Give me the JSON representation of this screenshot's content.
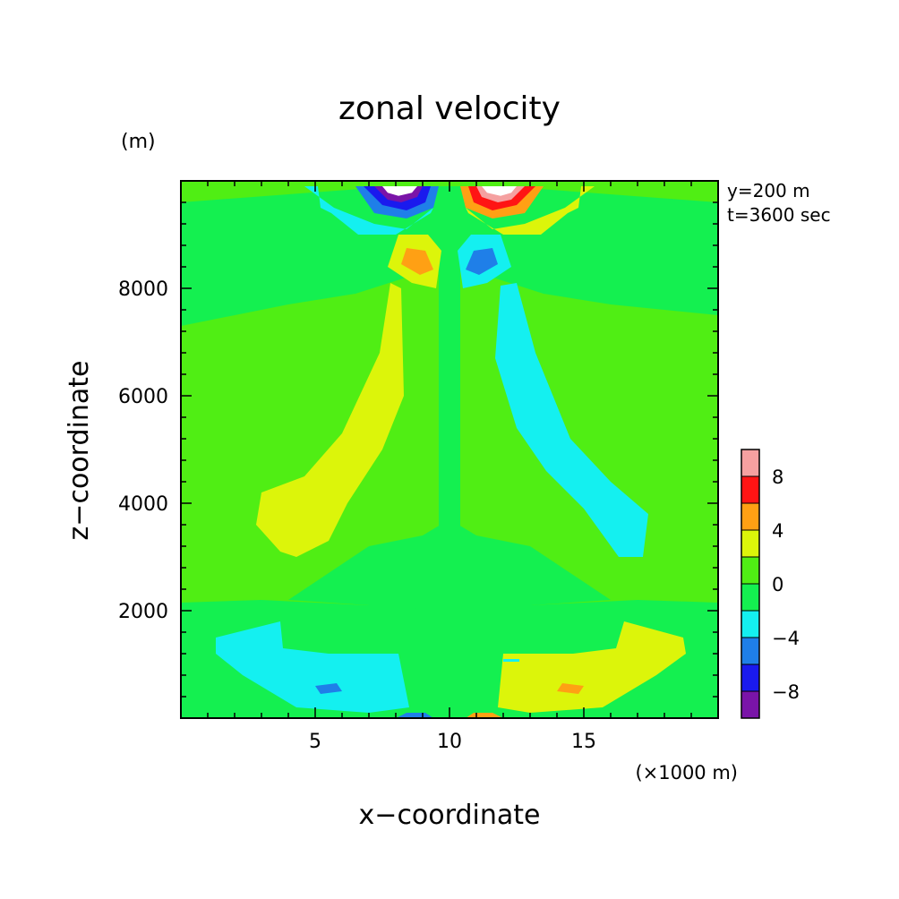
{
  "chart_data": {
    "type": "heatmap",
    "title": "zonal velocity",
    "xlabel": "x−coordinate",
    "ylabel": "z−coordinate",
    "x_unit": "(×1000 m)",
    "y_unit": "(m)",
    "annotations": [
      "y=200 m",
      "t=3600 sec"
    ],
    "xlim": [
      0,
      20
    ],
    "ylim": [
      0,
      10000
    ],
    "x_ticks": [
      {
        "value": 5,
        "label": "5"
      },
      {
        "value": 10,
        "label": "10"
      },
      {
        "value": 15,
        "label": "15"
      }
    ],
    "y_ticks": [
      {
        "value": 2000,
        "label": "2000"
      },
      {
        "value": 4000,
        "label": "4000"
      },
      {
        "value": 6000,
        "label": "6000"
      },
      {
        "value": 8000,
        "label": "8000"
      }
    ],
    "colorbar": {
      "levels": [
        -10,
        -8,
        -6,
        -4,
        -2,
        0,
        2,
        4,
        6,
        8,
        10
      ],
      "colors": [
        "#7a14a8",
        "#1a1aee",
        "#1f7fe8",
        "#14f0f0",
        "#14f050",
        "#50ee14",
        "#dcf50a",
        "#ffa014",
        "#ff1414",
        "#f5a0a0"
      ],
      "tick_labels": [
        {
          "value": -8,
          "label": "−8"
        },
        {
          "value": -4,
          "label": "−4"
        },
        {
          "value": 0,
          "label": "0"
        },
        {
          "value": 4,
          "label": "4"
        },
        {
          "value": 8,
          "label": "8"
        }
      ]
    },
    "background_value": 1,
    "features": [
      {
        "name": "low-band",
        "value": -1,
        "polygon": [
          [
            0,
            0
          ],
          [
            20,
            0
          ],
          [
            20,
            2150
          ],
          [
            17,
            2200
          ],
          [
            13,
            2100
          ],
          [
            10,
            2200
          ],
          [
            7,
            2100
          ],
          [
            3,
            2200
          ],
          [
            0,
            2150
          ]
        ]
      },
      {
        "name": "upper-band",
        "value": -1,
        "polygon": [
          [
            0,
            7300
          ],
          [
            4,
            7700
          ],
          [
            6.5,
            7900
          ],
          [
            9,
            8300
          ],
          [
            10,
            8300
          ],
          [
            11,
            8300
          ],
          [
            13.5,
            7900
          ],
          [
            16,
            7700
          ],
          [
            20,
            7500
          ],
          [
            20,
            9600
          ],
          [
            12,
            9900
          ],
          [
            8,
            9900
          ],
          [
            0,
            9600
          ]
        ]
      },
      {
        "name": "lower-center",
        "value": -1,
        "polygon": [
          [
            4,
            2200
          ],
          [
            7,
            3200
          ],
          [
            9,
            3400
          ],
          [
            10,
            3700
          ],
          [
            11,
            3400
          ],
          [
            13,
            3200
          ],
          [
            16,
            2200
          ],
          [
            10,
            2000
          ]
        ]
      },
      {
        "name": "center-column",
        "value": -1,
        "polygon": [
          [
            9.6,
            2000
          ],
          [
            10.4,
            2000
          ],
          [
            10.4,
            9600
          ],
          [
            9.6,
            9600
          ]
        ]
      },
      {
        "name": "left-positive-plume",
        "value": 3,
        "polygon": [
          [
            3.7,
            3100
          ],
          [
            4.3,
            3000
          ],
          [
            5.5,
            3300
          ],
          [
            6.2,
            4000
          ],
          [
            7.5,
            5000
          ],
          [
            8.3,
            6000
          ],
          [
            8.2,
            8000
          ],
          [
            7.8,
            8100
          ],
          [
            7.4,
            6800
          ],
          [
            6,
            5300
          ],
          [
            4.6,
            4500
          ],
          [
            3,
            4200
          ],
          [
            2.8,
            3600
          ]
        ]
      },
      {
        "name": "right-negative-plume",
        "value": -3,
        "polygon": [
          [
            16.3,
            3000
          ],
          [
            17.2,
            3000
          ],
          [
            17.4,
            3800
          ],
          [
            16,
            4400
          ],
          [
            14.5,
            5200
          ],
          [
            13.2,
            6800
          ],
          [
            12.5,
            8100
          ],
          [
            11.9,
            8050
          ],
          [
            11.7,
            6700
          ],
          [
            12.5,
            5400
          ],
          [
            13.6,
            4600
          ],
          [
            15,
            3900
          ]
        ]
      },
      {
        "name": "left-lower-cyan",
        "value": -3,
        "polygon": [
          [
            1.3,
            1500
          ],
          [
            3.7,
            1800
          ],
          [
            3.8,
            1300
          ],
          [
            5.5,
            1200
          ],
          [
            8.1,
            1200
          ],
          [
            8.5,
            200
          ],
          [
            7,
            100
          ],
          [
            4.3,
            200
          ],
          [
            2.3,
            800
          ],
          [
            1.3,
            1200
          ]
        ]
      },
      {
        "name": "right-lower-yellow",
        "value": 3,
        "polygon": [
          [
            18.7,
            1500
          ],
          [
            16.5,
            1800
          ],
          [
            16.2,
            1300
          ],
          [
            14.6,
            1200
          ],
          [
            12,
            1200
          ],
          [
            11.8,
            200
          ],
          [
            13,
            100
          ],
          [
            15.7,
            200
          ],
          [
            17.7,
            800
          ],
          [
            18.8,
            1200
          ]
        ]
      },
      {
        "name": "top-left-cyan",
        "value": -3,
        "polygon": [
          [
            4.6,
            9900
          ],
          [
            5.1,
            9900
          ],
          [
            5.2,
            9500
          ],
          [
            5.6,
            9400
          ],
          [
            6.6,
            9000
          ],
          [
            8.0,
            9000
          ],
          [
            9.3,
            9400
          ],
          [
            9.8,
            9900
          ],
          [
            9.4,
            9500
          ],
          [
            8.4,
            9100
          ],
          [
            7.2,
            9200
          ],
          [
            5.7,
            9500
          ]
        ]
      },
      {
        "name": "top-left-blue",
        "value": -5,
        "polygon": [
          [
            6.5,
            9900
          ],
          [
            9.6,
            9900
          ],
          [
            9.4,
            9500
          ],
          [
            8.4,
            9300
          ],
          [
            7.2,
            9400
          ]
        ]
      },
      {
        "name": "top-left-darkblue",
        "value": -7,
        "polygon": [
          [
            6.8,
            9900
          ],
          [
            9.3,
            9900
          ],
          [
            9.1,
            9600
          ],
          [
            8.4,
            9450
          ],
          [
            7.5,
            9550
          ]
        ]
      },
      {
        "name": "top-left-purple",
        "value": -9,
        "polygon": [
          [
            7.2,
            9900
          ],
          [
            9.0,
            9900
          ],
          [
            8.8,
            9700
          ],
          [
            8.2,
            9600
          ],
          [
            7.7,
            9650
          ]
        ]
      },
      {
        "name": "top-left-core",
        "value": 0,
        "color": "#ffffff",
        "polygon": [
          [
            7.5,
            9900
          ],
          [
            8.8,
            9900
          ],
          [
            8.6,
            9780
          ],
          [
            8.1,
            9720
          ],
          [
            7.7,
            9780
          ]
        ]
      },
      {
        "name": "top-right-yellow",
        "value": 3,
        "polygon": [
          [
            15.4,
            9900
          ],
          [
            14.9,
            9900
          ],
          [
            14.8,
            9500
          ],
          [
            14.4,
            9400
          ],
          [
            13.4,
            9000
          ],
          [
            12.0,
            9000
          ],
          [
            10.7,
            9400
          ],
          [
            10.2,
            9900
          ],
          [
            10.6,
            9500
          ],
          [
            11.6,
            9100
          ],
          [
            12.8,
            9200
          ],
          [
            14.3,
            9500
          ]
        ]
      },
      {
        "name": "top-right-orange",
        "value": 5,
        "polygon": [
          [
            13.5,
            9900
          ],
          [
            10.4,
            9900
          ],
          [
            10.6,
            9500
          ],
          [
            11.6,
            9300
          ],
          [
            12.8,
            9400
          ]
        ]
      },
      {
        "name": "top-right-red",
        "value": 7,
        "polygon": [
          [
            13.2,
            9900
          ],
          [
            10.7,
            9900
          ],
          [
            10.9,
            9600
          ],
          [
            11.6,
            9450
          ],
          [
            12.5,
            9550
          ]
        ]
      },
      {
        "name": "top-right-pink",
        "value": 9,
        "polygon": [
          [
            12.8,
            9900
          ],
          [
            11.0,
            9900
          ],
          [
            11.2,
            9700
          ],
          [
            11.8,
            9600
          ],
          [
            12.3,
            9650
          ]
        ]
      },
      {
        "name": "top-right-core",
        "value": 0,
        "color": "#ffffff",
        "polygon": [
          [
            12.5,
            9900
          ],
          [
            11.2,
            9900
          ],
          [
            11.4,
            9780
          ],
          [
            11.9,
            9720
          ],
          [
            12.3,
            9780
          ]
        ]
      },
      {
        "name": "left-eye-yellow",
        "value": 3,
        "polygon": [
          [
            8.1,
            9000
          ],
          [
            7.7,
            8400
          ],
          [
            8.6,
            8100
          ],
          [
            9.5,
            8000
          ],
          [
            9.7,
            8700
          ],
          [
            9.2,
            9000
          ]
        ]
      },
      {
        "name": "left-eye-orange",
        "value": 5,
        "polygon": [
          [
            8.4,
            8750
          ],
          [
            8.2,
            8450
          ],
          [
            8.9,
            8250
          ],
          [
            9.4,
            8350
          ],
          [
            9.1,
            8700
          ]
        ]
      },
      {
        "name": "right-eye-cyan",
        "value": -3,
        "polygon": [
          [
            11.9,
            9000
          ],
          [
            12.3,
            8400
          ],
          [
            11.4,
            8100
          ],
          [
            10.5,
            8000
          ],
          [
            10.3,
            8700
          ],
          [
            10.8,
            9000
          ]
        ]
      },
      {
        "name": "right-eye-blue",
        "value": -5,
        "polygon": [
          [
            11.6,
            8750
          ],
          [
            11.8,
            8450
          ],
          [
            11.1,
            8250
          ],
          [
            10.6,
            8350
          ],
          [
            10.9,
            8700
          ]
        ]
      },
      {
        "name": "left-small-blue",
        "value": -5,
        "polygon": [
          [
            5.8,
            650
          ],
          [
            5.0,
            600
          ],
          [
            5.2,
            450
          ],
          [
            6.0,
            500
          ]
        ]
      },
      {
        "name": "right-small-orange",
        "value": 5,
        "polygon": [
          [
            14.2,
            650
          ],
          [
            15.0,
            600
          ],
          [
            14.8,
            450
          ],
          [
            14.0,
            500
          ]
        ]
      },
      {
        "name": "bottom-left-blue",
        "value": -5,
        "polygon": [
          [
            8.0,
            0
          ],
          [
            9.4,
            0
          ],
          [
            9.1,
            100
          ],
          [
            8.4,
            100
          ]
        ]
      },
      {
        "name": "bottom-right-orange",
        "value": 5,
        "polygon": [
          [
            12.0,
            0
          ],
          [
            10.6,
            0
          ],
          [
            10.9,
            100
          ],
          [
            11.6,
            100
          ]
        ]
      },
      {
        "name": "small-cyan-mark",
        "value": -3,
        "polygon": [
          [
            12.0,
            1050
          ],
          [
            12.6,
            1050
          ],
          [
            12.6,
            1100
          ],
          [
            12.0,
            1100
          ]
        ]
      }
    ]
  }
}
